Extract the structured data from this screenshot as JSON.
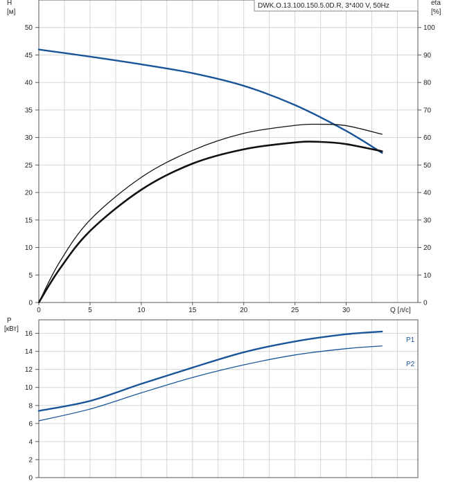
{
  "chart_data": [
    {
      "type": "line",
      "legend_text": "DWK.O.13.100.150.5.0D.R, 3*400 V, 50Hz",
      "legend_position": "top-right",
      "grid": true,
      "y_left": {
        "label": "H",
        "unit": "[м]",
        "range": [
          0,
          55
        ],
        "ticks": [
          0,
          5,
          10,
          15,
          20,
          25,
          30,
          35,
          40,
          45,
          50
        ]
      },
      "y_right": {
        "label": "eta",
        "unit": "[%]",
        "range": [
          0,
          110
        ],
        "ticks": [
          0,
          10,
          20,
          30,
          40,
          50,
          60,
          70,
          80,
          90,
          100
        ]
      },
      "x": {
        "label": "Q [л/с]",
        "range": [
          0,
          37
        ],
        "ticks": [
          0,
          5,
          10,
          15,
          20,
          25,
          30
        ]
      },
      "series": [
        {
          "axis": "left",
          "color": "#1a5599",
          "x": [
            0,
            5,
            10,
            15,
            20,
            25,
            30,
            33.5
          ],
          "values": [
            46,
            44.7,
            43.3,
            41.7,
            39.4,
            35.9,
            31.2,
            27.2
          ]
        },
        {
          "axis": "right",
          "color": "#111111",
          "x": [
            0,
            2,
            5,
            10,
            15,
            20,
            25,
            27.5,
            30,
            33.5
          ],
          "values": [
            0,
            12,
            26,
            41,
            50.5,
            55.7,
            58.2,
            58.4,
            57.6,
            55
          ]
        },
        {
          "axis": "right",
          "color": "#111111",
          "x": [
            0,
            2,
            5,
            10,
            15,
            20,
            25,
            27.5,
            30,
            33.5
          ],
          "values": [
            0,
            14.5,
            30,
            45.5,
            55.3,
            61.5,
            64.4,
            64.8,
            64.3,
            61.2
          ]
        }
      ]
    },
    {
      "type": "line",
      "grid": true,
      "y": {
        "label": "P",
        "unit": "[кВт]",
        "range": [
          0,
          17.5
        ],
        "ticks": [
          0,
          2,
          4,
          6,
          8,
          10,
          12,
          14,
          16
        ]
      },
      "x": {
        "range": [
          0,
          37
        ]
      },
      "series": [
        {
          "name": "P1",
          "color": "#1a5599",
          "x": [
            0,
            5,
            10,
            15,
            20,
            25,
            30,
            33.5
          ],
          "values": [
            7.4,
            8.5,
            10.4,
            12.2,
            13.9,
            15.1,
            15.9,
            16.2
          ]
        },
        {
          "name": "P2",
          "color": "#1a5599",
          "x": [
            0,
            5,
            10,
            15,
            20,
            25,
            30,
            33.5
          ],
          "values": [
            6.3,
            7.6,
            9.4,
            11.1,
            12.5,
            13.6,
            14.3,
            14.6
          ]
        }
      ]
    }
  ]
}
